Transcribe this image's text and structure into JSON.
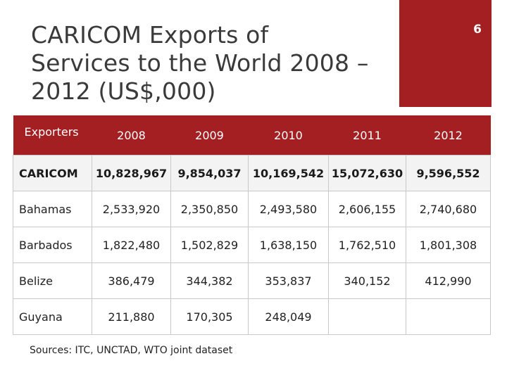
{
  "slide": {
    "title_lines": [
      "CARICOM Exports of",
      "Services to the World 2008 –",
      "2012 (US$,000)"
    ],
    "page_number": "6",
    "accent_color": "#a41f22"
  },
  "table": {
    "headers": [
      "Exporters",
      "2008",
      "2009",
      "2010",
      "2011",
      "2012"
    ],
    "rows": [
      {
        "name": "CARICOM",
        "values": [
          "10,828,967",
          "9,854,037",
          "10,169,542",
          "15,072,630",
          "9,596,552"
        ]
      },
      {
        "name": "Bahamas",
        "values": [
          "2,533,920",
          "2,350,850",
          "2,493,580",
          "2,606,155",
          "2,740,680"
        ]
      },
      {
        "name": "Barbados",
        "values": [
          "1,822,480",
          "1,502,829",
          "1,638,150",
          "1,762,510",
          "1,801,308"
        ]
      },
      {
        "name": "Belize",
        "values": [
          "386,479",
          "344,382",
          "353,837",
          "340,152",
          "412,990"
        ]
      },
      {
        "name": "Guyana",
        "values": [
          "211,880",
          "170,305",
          "248,049",
          "",
          ""
        ]
      }
    ]
  },
  "footer": {
    "source": "Sources: ITC, UNCTAD, WTO joint dataset"
  }
}
